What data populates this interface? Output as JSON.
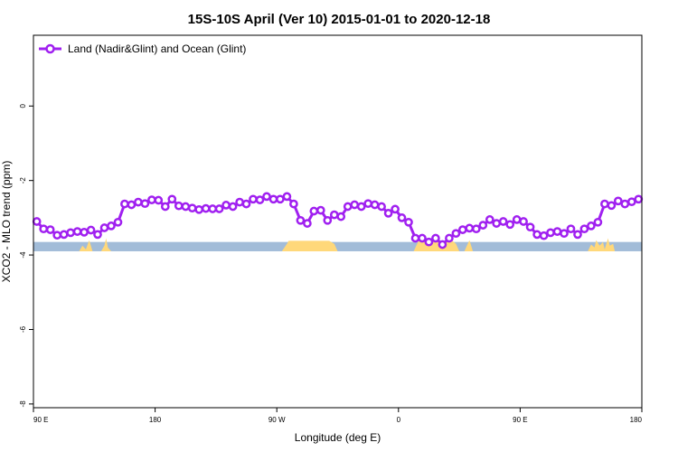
{
  "chart_data": {
    "type": "line",
    "title": "15S-10S April (Ver 10)   2015-01-01 to 2020-12-18",
    "xlabel": "Longitude (deg E)",
    "ylabel": "XCO2 - MLO trend (ppm)",
    "xlim": [
      90,
      450
    ],
    "ylim": [
      -8.1,
      1.9
    ],
    "x_ticks": [
      {
        "value": 90,
        "label": "90 E"
      },
      {
        "value": 162,
        "label": "180"
      },
      {
        "value": 234,
        "label": "90 W"
      },
      {
        "value": 306,
        "label": "0"
      },
      {
        "value": 378,
        "label": "90 E"
      },
      {
        "value": 450,
        "label": "180"
      }
    ],
    "y_ticks": [
      {
        "value": 0,
        "label": "0"
      },
      {
        "value": -2,
        "label": "-2"
      },
      {
        "value": -4,
        "label": "-4"
      },
      {
        "value": -6,
        "label": "-6"
      },
      {
        "value": -8,
        "label": "-8"
      }
    ],
    "grid": false,
    "legend": {
      "position": "top-left"
    },
    "series": [
      {
        "name": "Land (Nadir&Glint) and Ocean (Glint)",
        "color": "#a020f0",
        "x": [
          92,
          96,
          100,
          104,
          108,
          112,
          116,
          120,
          124,
          128,
          132,
          136,
          140,
          144,
          148,
          152,
          156,
          160,
          164,
          168,
          172,
          176,
          180,
          184,
          188,
          192,
          196,
          200,
          204,
          208,
          212,
          216,
          220,
          224,
          228,
          232,
          236,
          240,
          244,
          248,
          252,
          256,
          260,
          264,
          268,
          272,
          276,
          280,
          284,
          288,
          292,
          296,
          300,
          304,
          308,
          312,
          316,
          320,
          324,
          328,
          332,
          336,
          340,
          344,
          348,
          352,
          356,
          360,
          364,
          368,
          372,
          376,
          380,
          384,
          388,
          392,
          396,
          400,
          404,
          408,
          412,
          416,
          420,
          424,
          428,
          432,
          436,
          440,
          444,
          448
        ],
        "y": [
          -3.1,
          -3.3,
          -3.32,
          -3.47,
          -3.45,
          -3.4,
          -3.37,
          -3.39,
          -3.33,
          -3.45,
          -3.27,
          -3.22,
          -3.12,
          -2.63,
          -2.65,
          -2.58,
          -2.62,
          -2.52,
          -2.53,
          -2.7,
          -2.5,
          -2.68,
          -2.7,
          -2.74,
          -2.78,
          -2.75,
          -2.76,
          -2.76,
          -2.66,
          -2.7,
          -2.58,
          -2.63,
          -2.5,
          -2.52,
          -2.43,
          -2.5,
          -2.5,
          -2.43,
          -2.63,
          -3.07,
          -3.15,
          -2.82,
          -2.8,
          -3.07,
          -2.92,
          -2.97,
          -2.7,
          -2.65,
          -2.7,
          -2.62,
          -2.65,
          -2.7,
          -2.88,
          -2.77,
          -3.0,
          -3.12,
          -3.55,
          -3.55,
          -3.65,
          -3.55,
          -3.72,
          -3.55,
          -3.42,
          -3.32,
          -3.28,
          -3.3,
          -3.2,
          -3.05,
          -3.15,
          -3.1,
          -3.18,
          -3.05,
          -3.1,
          -3.25,
          -3.45,
          -3.48,
          -3.4,
          -3.37,
          -3.42,
          -3.3,
          -3.45,
          -3.3,
          -3.22,
          -3.12,
          -2.63,
          -2.67,
          -2.55,
          -2.63,
          -2.57,
          -2.5
        ]
      }
    ],
    "background_band": {
      "y_from": -3.65,
      "y_to": -3.9,
      "color": "#a2bcd8"
    },
    "land_fill_color": "#ffd87a",
    "land_regions": [
      {
        "x": [
          117,
          119,
          121,
          123,
          125,
          126
        ],
        "y": [
          -3.9,
          -3.75,
          -3.85,
          -3.6,
          -3.9,
          -3.9
        ]
      },
      {
        "x": [
          130,
          132,
          133,
          134,
          136
        ],
        "y": [
          -3.9,
          -3.75,
          -3.55,
          -3.8,
          -3.9
        ]
      },
      {
        "x": [
          237,
          240,
          241,
          265,
          268,
          270
        ],
        "y": [
          -3.9,
          -3.7,
          -3.62,
          -3.62,
          -3.7,
          -3.9
        ]
      },
      {
        "x": [
          315,
          317,
          318,
          338,
          340,
          342
        ],
        "y": [
          -3.9,
          -3.7,
          -3.62,
          -3.62,
          -3.7,
          -3.9
        ]
      },
      {
        "x": [
          345,
          347,
          348,
          350
        ],
        "y": [
          -3.9,
          -3.7,
          -3.6,
          -3.9
        ]
      },
      {
        "x": [
          418,
          420,
          422,
          423,
          425,
          427,
          428,
          430,
          431,
          433,
          434
        ],
        "y": [
          -3.9,
          -3.72,
          -3.8,
          -3.6,
          -3.75,
          -3.65,
          -3.85,
          -3.55,
          -3.75,
          -3.7,
          -3.9
        ]
      }
    ]
  }
}
